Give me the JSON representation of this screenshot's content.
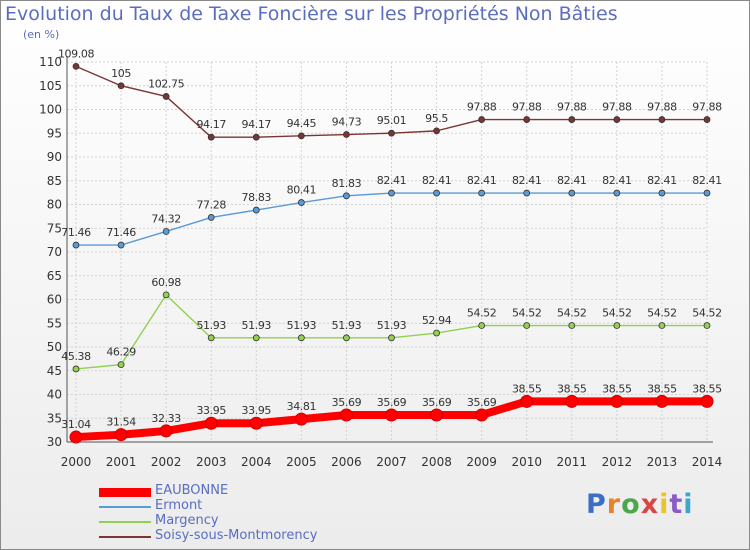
{
  "title": "Evolution du Taux de Taxe Foncière sur les Propriétés Non Bâties",
  "unit_label": "(en %)",
  "brand": {
    "text": "Proxiti",
    "letter_colors": [
      "#3b6fc4",
      "#e8822a",
      "#4aa84a",
      "#d94444",
      "#e8c52a",
      "#8a5cc8",
      "#3aa8c8"
    ]
  },
  "chart_data": {
    "type": "line",
    "x": [
      "2000",
      "2001",
      "2002",
      "2003",
      "2004",
      "2005",
      "2006",
      "2007",
      "2008",
      "2009",
      "2010",
      "2011",
      "2012",
      "2013",
      "2014"
    ],
    "ylim": [
      30,
      110
    ],
    "yticks": [
      30,
      35,
      40,
      45,
      50,
      55,
      60,
      65,
      70,
      75,
      80,
      85,
      90,
      95,
      100,
      105,
      110
    ],
    "grid": true,
    "legend_position": "bottom-left",
    "series": [
      {
        "name": "Soisy-sous-Montmorency",
        "color": "#7a3535",
        "values": [
          109.08,
          105,
          102.75,
          94.17,
          94.17,
          94.45,
          94.73,
          95.01,
          95.5,
          97.88,
          97.88,
          97.88,
          97.88,
          97.88,
          97.88
        ],
        "labels": [
          "109.08",
          "105",
          "102.75",
          "94.17",
          "94.17",
          "94.45",
          "94.73",
          "95.01",
          "95.5",
          "97.88",
          "97.88",
          "97.88",
          "97.88",
          "97.88",
          "97.88"
        ]
      },
      {
        "name": "Ermont",
        "color": "#5b9bd5",
        "values": [
          71.46,
          71.46,
          74.32,
          77.28,
          78.83,
          80.41,
          81.83,
          82.41,
          82.41,
          82.41,
          82.41,
          82.41,
          82.41,
          82.41,
          82.41
        ],
        "labels": [
          "71.46",
          "71.46",
          "74.32",
          "77.28",
          "78.83",
          "80.41",
          "81.83",
          "82.41",
          "82.41",
          "82.41",
          "82.41",
          "82.41",
          "82.41",
          "82.41",
          "82.41"
        ]
      },
      {
        "name": "Margency",
        "color": "#92d050",
        "values": [
          45.38,
          46.29,
          60.98,
          51.93,
          51.93,
          51.93,
          51.93,
          51.93,
          52.94,
          54.52,
          54.52,
          54.52,
          54.52,
          54.52,
          54.52
        ],
        "labels": [
          "45.38",
          "46.29",
          "60.98",
          "51.93",
          "51.93",
          "51.93",
          "51.93",
          "51.93",
          "52.94",
          "54.52",
          "54.52",
          "54.52",
          "54.52",
          "54.52",
          "54.52"
        ]
      },
      {
        "name": "EAUBONNE",
        "color": "#ff0000",
        "values": [
          31.04,
          31.54,
          32.33,
          33.95,
          33.95,
          34.81,
          35.69,
          35.69,
          35.69,
          35.69,
          38.55,
          38.55,
          38.55,
          38.55,
          38.55
        ],
        "labels": [
          "31.04",
          "31.54",
          "32.33",
          "33.95",
          "33.95",
          "34.81",
          "35.69",
          "35.69",
          "35.69",
          "35.69",
          "38.55",
          "38.55",
          "38.55",
          "38.55",
          "38.55"
        ]
      }
    ],
    "legend": [
      {
        "name": "EAUBONNE",
        "color": "#ff0000",
        "thick": true
      },
      {
        "name": "Ermont",
        "color": "#5b9bd5",
        "thick": false
      },
      {
        "name": "Margency",
        "color": "#92d050",
        "thick": false
      },
      {
        "name": "Soisy-sous-Montmorency",
        "color": "#7a3535",
        "thick": false
      }
    ]
  }
}
